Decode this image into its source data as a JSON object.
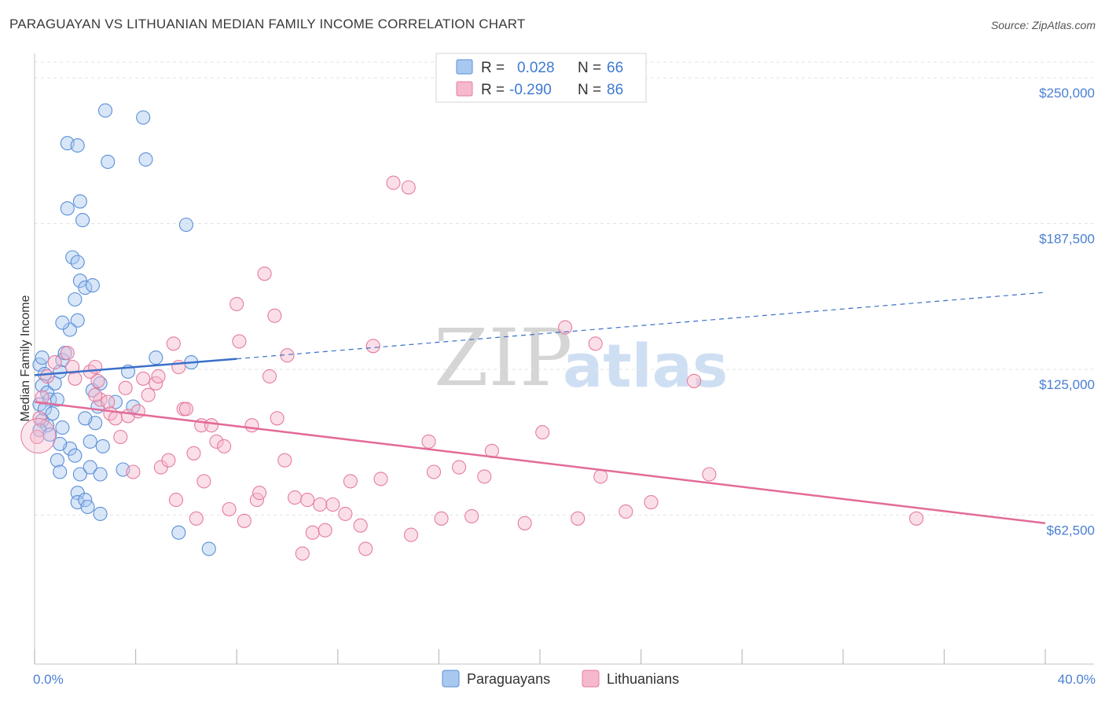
{
  "title": "PARAGUAYAN VS LITHUANIAN MEDIAN FAMILY INCOME CORRELATION CHART",
  "source": "Source: ZipAtlas.com",
  "watermark": {
    "zip": "ZIP",
    "atlas": "atlas"
  },
  "colors": {
    "blue_fill": "#a9c8f0",
    "blue_stroke": "#5b8fd6",
    "blue_line": "#3a70c9",
    "pink_fill": "#f6b8cc",
    "pink_stroke": "#e47ca0",
    "pink_line": "#e36b98",
    "tick_text": "#4a7fd4",
    "grid": "#e3e3e3"
  },
  "chart_data": {
    "type": "scatter",
    "title": "PARAGUAYAN VS LITHUANIAN MEDIAN FAMILY INCOME CORRELATION CHART",
    "xlabel": "",
    "ylabel": "Median Family Income",
    "xlim": [
      0,
      40
    ],
    "ylim": [
      5000,
      262500
    ],
    "x_tick_labels": {
      "left": "0.0%",
      "right": "40.0%"
    },
    "y_ticks": [
      {
        "value": 250000,
        "label": "$250,000"
      },
      {
        "value": 187500,
        "label": "$187,500"
      },
      {
        "value": 125000,
        "label": "$125,000"
      },
      {
        "value": 62500,
        "label": "$62,500"
      }
    ],
    "legend": {
      "rows": [
        {
          "r_label": "R =",
          "r_value": "0.028",
          "n_label": "N =",
          "n_value": "66"
        },
        {
          "r_label": "R =",
          "r_value": "-0.290",
          "n_label": "N =",
          "n_value": "86"
        }
      ]
    },
    "series": [
      {
        "name": "Paraguayans",
        "color": "#a9c8f0",
        "trend": {
          "x": [
            0,
            8,
            40
          ],
          "y": [
            122500,
            129500,
            158000
          ],
          "solid_until": 8
        },
        "points": [
          [
            0.2,
            127000
          ],
          [
            0.3,
            130000
          ],
          [
            0.4,
            123000
          ],
          [
            0.3,
            118000
          ],
          [
            0.5,
            115000
          ],
          [
            0.2,
            110000
          ],
          [
            0.6,
            112000
          ],
          [
            0.4,
            108000
          ],
          [
            0.7,
            106000
          ],
          [
            0.3,
            103000
          ],
          [
            0.5,
            101000
          ],
          [
            0.2,
            99000
          ],
          [
            0.6,
            97000
          ],
          [
            0.8,
            119000
          ],
          [
            0.9,
            112000
          ],
          [
            1.1,
            129000
          ],
          [
            1.2,
            132000
          ],
          [
            1.0,
            124000
          ],
          [
            1.1,
            100000
          ],
          [
            1.4,
            91000
          ],
          [
            1.6,
            88000
          ],
          [
            1.0,
            93000
          ],
          [
            0.9,
            86000
          ],
          [
            1.0,
            81000
          ],
          [
            1.8,
            80000
          ],
          [
            1.7,
            72000
          ],
          [
            1.7,
            68000
          ],
          [
            2.0,
            69000
          ],
          [
            2.1,
            66000
          ],
          [
            2.6,
            63000
          ],
          [
            2.2,
            94000
          ],
          [
            2.4,
            102000
          ],
          [
            2.5,
            109000
          ],
          [
            2.3,
            116000
          ],
          [
            2.7,
            92000
          ],
          [
            2.2,
            83000
          ],
          [
            2.6,
            80000
          ],
          [
            1.7,
            146000
          ],
          [
            1.4,
            142000
          ],
          [
            1.1,
            145000
          ],
          [
            1.6,
            155000
          ],
          [
            1.8,
            163000
          ],
          [
            2.0,
            160000
          ],
          [
            2.3,
            161000
          ],
          [
            1.5,
            173000
          ],
          [
            1.7,
            171000
          ],
          [
            1.3,
            194000
          ],
          [
            1.8,
            197000
          ],
          [
            1.9,
            189000
          ],
          [
            2.8,
            236000
          ],
          [
            4.3,
            233000
          ],
          [
            1.3,
            222000
          ],
          [
            1.7,
            221000
          ],
          [
            2.9,
            214000
          ],
          [
            4.4,
            215000
          ],
          [
            6.0,
            187000
          ],
          [
            3.2,
            111000
          ],
          [
            3.5,
            82000
          ],
          [
            5.7,
            55000
          ],
          [
            6.9,
            48000
          ],
          [
            6.2,
            128000
          ],
          [
            4.8,
            130000
          ],
          [
            3.9,
            109000
          ],
          [
            3.7,
            124000
          ],
          [
            2.0,
            104000
          ],
          [
            2.6,
            119000
          ]
        ]
      },
      {
        "name": "Lithuanians",
        "color": "#f6b8cc",
        "trend": {
          "x": [
            0,
            40
          ],
          "y": [
            111000,
            59000
          ]
        },
        "points": [
          [
            0.1,
            96000
          ],
          [
            0.3,
            113000
          ],
          [
            0.5,
            122000
          ],
          [
            0.8,
            128000
          ],
          [
            1.3,
            132000
          ],
          [
            1.5,
            126000
          ],
          [
            1.6,
            121000
          ],
          [
            2.2,
            124000
          ],
          [
            2.4,
            126000
          ],
          [
            2.5,
            120000
          ],
          [
            2.6,
            112000
          ],
          [
            2.4,
            114000
          ],
          [
            2.9,
            111000
          ],
          [
            3.0,
            106000
          ],
          [
            3.2,
            104000
          ],
          [
            3.4,
            96000
          ],
          [
            3.6,
            117000
          ],
          [
            3.7,
            105000
          ],
          [
            3.9,
            81000
          ],
          [
            4.1,
            107000
          ],
          [
            4.3,
            121000
          ],
          [
            4.5,
            114000
          ],
          [
            4.8,
            119000
          ],
          [
            4.9,
            122000
          ],
          [
            5.0,
            83000
          ],
          [
            5.3,
            86000
          ],
          [
            5.5,
            136000
          ],
          [
            5.6,
            69000
          ],
          [
            5.7,
            126000
          ],
          [
            5.9,
            108000
          ],
          [
            6.0,
            108000
          ],
          [
            6.3,
            89000
          ],
          [
            6.4,
            61000
          ],
          [
            6.6,
            101000
          ],
          [
            6.7,
            77000
          ],
          [
            7.0,
            101000
          ],
          [
            7.2,
            94000
          ],
          [
            7.5,
            92000
          ],
          [
            7.7,
            65000
          ],
          [
            8.0,
            153000
          ],
          [
            8.1,
            137000
          ],
          [
            8.3,
            60000
          ],
          [
            8.6,
            101000
          ],
          [
            8.8,
            69000
          ],
          [
            8.9,
            72000
          ],
          [
            9.1,
            166000
          ],
          [
            9.3,
            122000
          ],
          [
            9.5,
            148000
          ],
          [
            9.6,
            104000
          ],
          [
            9.9,
            86000
          ],
          [
            10.0,
            131000
          ],
          [
            10.3,
            70000
          ],
          [
            10.6,
            46000
          ],
          [
            10.8,
            69000
          ],
          [
            11.0,
            55000
          ],
          [
            11.3,
            67000
          ],
          [
            11.5,
            56000
          ],
          [
            11.8,
            67000
          ],
          [
            12.3,
            63000
          ],
          [
            12.5,
            77000
          ],
          [
            12.9,
            58000
          ],
          [
            13.1,
            48000
          ],
          [
            13.4,
            135000
          ],
          [
            13.7,
            78000
          ],
          [
            14.2,
            205000
          ],
          [
            14.8,
            203000
          ],
          [
            14.9,
            54000
          ],
          [
            15.6,
            94000
          ],
          [
            15.8,
            81000
          ],
          [
            16.1,
            61000
          ],
          [
            16.8,
            83000
          ],
          [
            17.3,
            62000
          ],
          [
            17.8,
            79000
          ],
          [
            18.1,
            90000
          ],
          [
            19.4,
            59000
          ],
          [
            20.1,
            98000
          ],
          [
            21.0,
            143000
          ],
          [
            21.5,
            61000
          ],
          [
            22.2,
            136000
          ],
          [
            22.4,
            79000
          ],
          [
            23.4,
            64000
          ],
          [
            24.4,
            68000
          ],
          [
            26.1,
            120000
          ],
          [
            26.7,
            80000
          ],
          [
            34.9,
            61000
          ],
          [
            0.2,
            104000
          ]
        ]
      }
    ]
  },
  "bottom_legend": [
    {
      "label": "Paraguayans"
    },
    {
      "label": "Lithuanians"
    }
  ]
}
